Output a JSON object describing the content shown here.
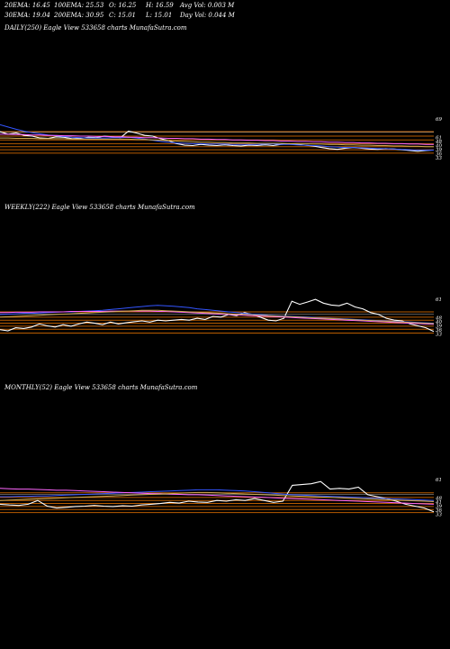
{
  "header": {
    "ema20": "20EMA: 16.45",
    "ema100": "100EMA: 25.53",
    "open": "O: 16.25",
    "high": "H: 16.59",
    "avgvol": "Avg Vol: 0.003 M",
    "ema30": "30EMA: 19.04",
    "ema200": "200EMA: 30.95",
    "close": "C: 15.01",
    "low": "L: 15.01",
    "dayvol": "Day Vol: 0.044 M"
  },
  "chart_data": [
    {
      "type": "line",
      "title": "DAILY(250) Eagle  View  533658  charts MunafaSutra.com",
      "price_labels": [
        "69",
        "61",
        "48",
        "40",
        "39",
        "36",
        "33"
      ],
      "series": [
        {
          "color": "#ffffff",
          "values": [
            0.62,
            0.55,
            0.58,
            0.52,
            0.5,
            0.45,
            0.44,
            0.48,
            0.47,
            0.43,
            0.44,
            0.47,
            0.46,
            0.5,
            0.48,
            0.46,
            0.63,
            0.58,
            0.52,
            0.5,
            0.43,
            0.38,
            0.3,
            0.26,
            0.25,
            0.28,
            0.26,
            0.25,
            0.27,
            0.25,
            0.24,
            0.26,
            0.25,
            0.27,
            0.25,
            0.28,
            0.3,
            0.28,
            0.26,
            0.24,
            0.2,
            0.17,
            0.15,
            0.18,
            0.2,
            0.18,
            0.16,
            0.15,
            0.17,
            0.16,
            0.14,
            0.12,
            0.1,
            0.12,
            0.13
          ]
        },
        {
          "color": "#3355ff",
          "values": [
            0.8,
            0.74,
            0.68,
            0.63,
            0.59,
            0.56,
            0.53,
            0.51,
            0.49,
            0.47,
            0.46,
            0.45,
            0.45,
            0.45,
            0.46,
            0.46,
            0.47,
            0.45,
            0.42,
            0.39,
            0.36,
            0.34,
            0.32,
            0.31,
            0.3,
            0.3,
            0.29,
            0.29,
            0.29,
            0.28,
            0.28,
            0.28,
            0.28,
            0.29,
            0.29,
            0.28,
            0.28,
            0.27,
            0.26,
            0.25,
            0.24,
            0.22,
            0.21,
            0.2,
            0.2,
            0.19,
            0.18,
            0.17,
            0.17,
            0.16,
            0.15,
            0.14,
            0.13,
            0.13,
            0.13
          ]
        },
        {
          "color": "#ff66ff",
          "values": [
            0.55,
            0.55,
            0.54,
            0.54,
            0.53,
            0.53,
            0.52,
            0.52,
            0.51,
            0.51,
            0.5,
            0.5,
            0.49,
            0.49,
            0.48,
            0.48,
            0.47,
            0.47,
            0.46,
            0.46,
            0.45,
            0.44,
            0.44,
            0.43,
            0.43,
            0.42,
            0.42,
            0.41,
            0.41,
            0.4,
            0.4,
            0.39,
            0.39,
            0.38,
            0.38,
            0.37,
            0.37,
            0.36,
            0.36,
            0.35,
            0.35,
            0.34,
            0.34,
            0.33,
            0.33,
            0.32,
            0.32,
            0.31,
            0.31,
            0.3,
            0.3,
            0.29,
            0.29,
            0.28,
            0.28
          ]
        },
        {
          "color": "#ccaa55",
          "values": [
            0.45,
            0.45,
            0.44,
            0.44,
            0.44,
            0.43,
            0.43,
            0.43,
            0.43,
            0.42,
            0.42,
            0.42,
            0.42,
            0.42,
            0.42,
            0.42,
            0.42,
            0.41,
            0.41,
            0.4,
            0.39,
            0.38,
            0.37,
            0.36,
            0.35,
            0.34,
            0.34,
            0.33,
            0.33,
            0.32,
            0.32,
            0.32,
            0.31,
            0.31,
            0.31,
            0.31,
            0.3,
            0.3,
            0.3,
            0.29,
            0.29,
            0.28,
            0.28,
            0.27,
            0.27,
            0.26,
            0.26,
            0.25,
            0.25,
            0.24,
            0.24,
            0.23,
            0.23,
            0.22,
            0.22
          ]
        }
      ],
      "level_lines": [
        {
          "color": "#cc6600",
          "y": [
            0.62,
            0.5,
            0.4,
            0.3,
            0.22,
            0.14,
            0.05
          ]
        },
        {
          "color": "#ffffff",
          "y": [
            0.6
          ]
        }
      ]
    },
    {
      "type": "line",
      "title": "WEEKLY(222) Eagle  View  533658  charts MunafaSutra.com",
      "price_labels": [
        "61",
        "48",
        "40",
        "39",
        "36",
        "33"
      ],
      "series": [
        {
          "color": "#ffffff",
          "values": [
            0.15,
            0.12,
            0.2,
            0.18,
            0.22,
            0.3,
            0.25,
            0.22,
            0.28,
            0.24,
            0.3,
            0.35,
            0.32,
            0.28,
            0.35,
            0.3,
            0.33,
            0.36,
            0.38,
            0.35,
            0.4,
            0.38,
            0.4,
            0.42,
            0.4,
            0.45,
            0.42,
            0.5,
            0.48,
            0.55,
            0.52,
            0.6,
            0.55,
            0.48,
            0.4,
            0.38,
            0.45,
            0.9,
            0.82,
            0.88,
            0.95,
            0.85,
            0.8,
            0.78,
            0.85,
            0.75,
            0.7,
            0.6,
            0.55,
            0.45,
            0.4,
            0.38,
            0.3,
            0.25,
            0.2,
            0.1
          ]
        },
        {
          "color": "#3355ff",
          "values": [
            0.55,
            0.56,
            0.57,
            0.58,
            0.58,
            0.59,
            0.6,
            0.61,
            0.62,
            0.62,
            0.63,
            0.64,
            0.65,
            0.66,
            0.68,
            0.7,
            0.72,
            0.74,
            0.76,
            0.78,
            0.79,
            0.78,
            0.77,
            0.75,
            0.73,
            0.7,
            0.68,
            0.66,
            0.64,
            0.62,
            0.6,
            0.58,
            0.56,
            0.55,
            0.53,
            0.52,
            0.51,
            0.5,
            0.49,
            0.48,
            0.47,
            0.46,
            0.45,
            0.44,
            0.43,
            0.42,
            0.41,
            0.4,
            0.39,
            0.38,
            0.37,
            0.36,
            0.35,
            0.34,
            0.33,
            0.32
          ]
        },
        {
          "color": "#ff66ff",
          "values": [
            0.6,
            0.6,
            0.61,
            0.61,
            0.61,
            0.62,
            0.62,
            0.62,
            0.62,
            0.63,
            0.63,
            0.63,
            0.63,
            0.63,
            0.64,
            0.64,
            0.64,
            0.64,
            0.64,
            0.64,
            0.63,
            0.63,
            0.62,
            0.61,
            0.6,
            0.59,
            0.58,
            0.57,
            0.56,
            0.55,
            0.54,
            0.53,
            0.52,
            0.51,
            0.5,
            0.49,
            0.48,
            0.47,
            0.46,
            0.45,
            0.44,
            0.43,
            0.42,
            0.41,
            0.4,
            0.39,
            0.38,
            0.37,
            0.36,
            0.35,
            0.34,
            0.33,
            0.32,
            0.31,
            0.3,
            0.29
          ]
        },
        {
          "color": "#ccaa55",
          "values": [
            0.48,
            0.49,
            0.5,
            0.51,
            0.52,
            0.53,
            0.54,
            0.55,
            0.56,
            0.57,
            0.58,
            0.59,
            0.6,
            0.61,
            0.62,
            0.63,
            0.64,
            0.65,
            0.66,
            0.66,
            0.66,
            0.65,
            0.64,
            0.63,
            0.62,
            0.61,
            0.6,
            0.59,
            0.58,
            0.57,
            0.56,
            0.55,
            0.54,
            0.53,
            0.52,
            0.51,
            0.5,
            0.49,
            0.48,
            0.47,
            0.46,
            0.45,
            0.44,
            0.43,
            0.42,
            0.41,
            0.4,
            0.39,
            0.38,
            0.37,
            0.36,
            0.35,
            0.34,
            0.33,
            0.32,
            0.31
          ]
        }
      ],
      "level_lines": [
        {
          "color": "#cc6600",
          "y": [
            0.62,
            0.48,
            0.4,
            0.32,
            0.24,
            0.16,
            0.06
          ]
        },
        {
          "color": "#ffffff",
          "y": [
            0.56
          ]
        }
      ]
    },
    {
      "type": "line",
      "title": "MONTHLY(52) Eagle  View  533658  charts MunafaSutra.com",
      "price_labels": [
        "61",
        "48",
        "41",
        "39",
        "36",
        "33"
      ],
      "series": [
        {
          "color": "#ffffff",
          "values": [
            0.3,
            0.28,
            0.27,
            0.3,
            0.4,
            0.25,
            0.2,
            0.22,
            0.24,
            0.25,
            0.27,
            0.25,
            0.24,
            0.26,
            0.25,
            0.28,
            0.3,
            0.32,
            0.35,
            0.33,
            0.38,
            0.36,
            0.35,
            0.4,
            0.38,
            0.42,
            0.4,
            0.45,
            0.4,
            0.35,
            0.38,
            0.8,
            0.82,
            0.84,
            0.9,
            0.7,
            0.72,
            0.7,
            0.75,
            0.55,
            0.5,
            0.45,
            0.38,
            0.3,
            0.25,
            0.2,
            0.1
          ]
        },
        {
          "color": "#3355ff",
          "values": [
            0.5,
            0.5,
            0.51,
            0.51,
            0.52,
            0.52,
            0.53,
            0.54,
            0.55,
            0.56,
            0.57,
            0.58,
            0.59,
            0.6,
            0.61,
            0.62,
            0.63,
            0.64,
            0.65,
            0.66,
            0.67,
            0.68,
            0.68,
            0.68,
            0.67,
            0.66,
            0.65,
            0.63,
            0.61,
            0.59,
            0.57,
            0.55,
            0.54,
            0.53,
            0.52,
            0.51,
            0.5,
            0.49,
            0.48,
            0.47,
            0.46,
            0.45,
            0.44,
            0.43,
            0.42,
            0.41,
            0.4
          ]
        },
        {
          "color": "#ff66ff",
          "values": [
            0.72,
            0.71,
            0.7,
            0.7,
            0.69,
            0.68,
            0.67,
            0.67,
            0.66,
            0.65,
            0.64,
            0.63,
            0.62,
            0.61,
            0.6,
            0.59,
            0.58,
            0.58,
            0.57,
            0.56,
            0.55,
            0.55,
            0.54,
            0.53,
            0.52,
            0.51,
            0.5,
            0.49,
            0.48,
            0.47,
            0.46,
            0.45,
            0.44,
            0.43,
            0.42,
            0.41,
            0.4,
            0.39,
            0.38,
            0.37,
            0.36,
            0.35,
            0.34,
            0.33,
            0.32,
            0.31,
            0.3
          ]
        },
        {
          "color": "#ccaa55",
          "values": [
            0.4,
            0.41,
            0.42,
            0.43,
            0.44,
            0.45,
            0.46,
            0.47,
            0.48,
            0.49,
            0.5,
            0.51,
            0.52,
            0.53,
            0.54,
            0.55,
            0.56,
            0.57,
            0.58,
            0.59,
            0.6,
            0.61,
            0.61,
            0.6,
            0.59,
            0.58,
            0.57,
            0.56,
            0.55,
            0.54,
            0.53,
            0.52,
            0.51,
            0.5,
            0.49,
            0.48,
            0.47,
            0.46,
            0.45,
            0.44,
            0.43,
            0.42,
            0.41,
            0.4,
            0.39,
            0.38,
            0.37
          ]
        }
      ],
      "level_lines": [
        {
          "color": "#cc6600",
          "y": [
            0.6,
            0.48,
            0.4,
            0.32,
            0.24,
            0.16,
            0.08
          ]
        },
        {
          "color": "#ffffff",
          "y": [
            0.56
          ]
        }
      ]
    }
  ]
}
